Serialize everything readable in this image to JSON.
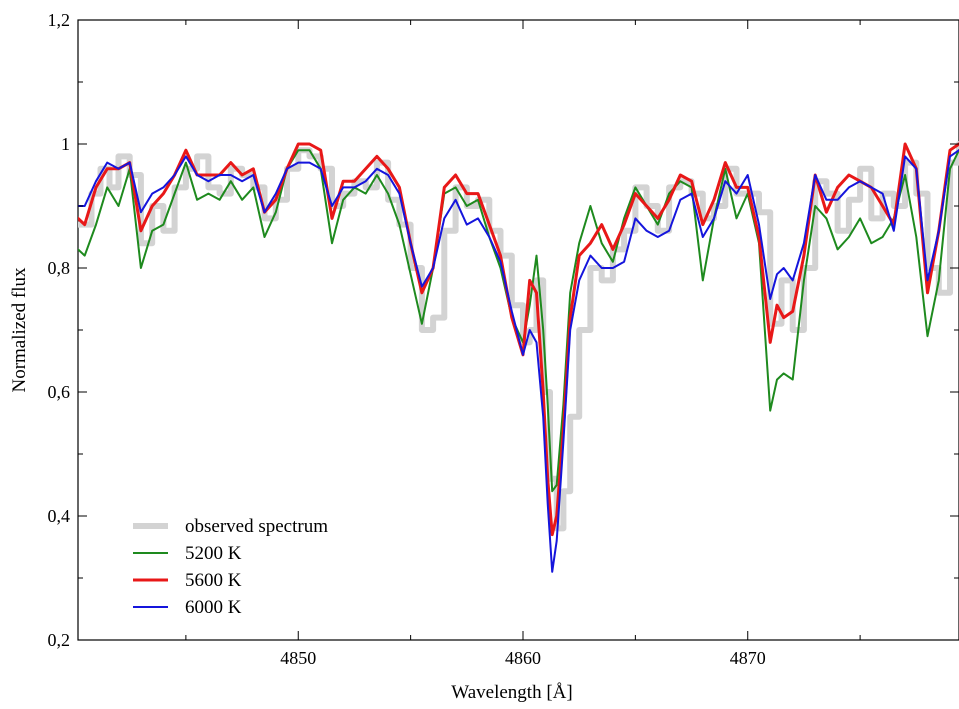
{
  "chart_data": {
    "type": "line",
    "title": "",
    "xlabel": "Wavelength [Å]",
    "ylabel": "Normalized flux",
    "xlim": [
      4840.2,
      4879.4
    ],
    "ylim": [
      0.2,
      1.2
    ],
    "x_ticks": [
      4850,
      4860,
      4870
    ],
    "x_tick_labels": [
      "4850",
      "4860",
      "4870"
    ],
    "y_ticks": [
      0.2,
      0.4,
      0.6,
      0.8,
      1.0,
      1.2
    ],
    "y_tick_labels": [
      "0,2",
      "0,4",
      "0,6",
      "0,8",
      "1",
      "1,2"
    ],
    "grid": false,
    "legend_position": "bottom-left",
    "series": [
      {
        "name": "observed spectrum",
        "color": "#d3d3d3",
        "x": [
          4840.2,
          4840.8,
          4841.2,
          4841.6,
          4842.0,
          4842.5,
          4843.0,
          4843.5,
          4844.0,
          4844.5,
          4845.0,
          4845.5,
          4846.0,
          4846.5,
          4847.0,
          4847.5,
          4848.0,
          4848.5,
          4849.0,
          4849.5,
          4850.0,
          4850.5,
          4851.0,
          4851.5,
          4852.0,
          4852.5,
          4853.0,
          4853.5,
          4854.0,
          4854.5,
          4855.0,
          4855.5,
          4856.0,
          4856.5,
          4857.0,
          4857.5,
          4858.0,
          4858.5,
          4859.0,
          4859.5,
          4860.0,
          4860.3,
          4860.6,
          4860.9,
          4861.2,
          4861.5,
          4861.8,
          4862.1,
          4862.5,
          4863.0,
          4863.5,
          4864.0,
          4864.5,
          4865.0,
          4865.5,
          4866.0,
          4866.5,
          4867.0,
          4867.5,
          4868.0,
          4868.5,
          4869.0,
          4869.5,
          4870.0,
          4870.5,
          4871.0,
          4871.5,
          4872.0,
          4872.5,
          4873.0,
          4873.5,
          4874.0,
          4874.5,
          4875.0,
          4875.5,
          4876.0,
          4876.5,
          4877.0,
          4877.5,
          4878.0,
          4878.5,
          4879.0,
          4879.4
        ],
        "y": [
          0.87,
          0.92,
          0.96,
          0.93,
          0.98,
          0.95,
          0.84,
          0.9,
          0.86,
          0.93,
          0.96,
          0.98,
          0.93,
          0.92,
          0.96,
          0.95,
          0.93,
          0.88,
          0.91,
          0.96,
          0.99,
          0.98,
          0.96,
          0.9,
          0.92,
          0.94,
          0.93,
          0.97,
          0.91,
          0.87,
          0.8,
          0.7,
          0.72,
          0.86,
          0.93,
          0.9,
          0.91,
          0.86,
          0.82,
          0.74,
          0.68,
          0.7,
          0.78,
          0.6,
          0.46,
          0.38,
          0.44,
          0.56,
          0.7,
          0.8,
          0.78,
          0.83,
          0.86,
          0.93,
          0.9,
          0.86,
          0.93,
          0.94,
          0.92,
          0.88,
          0.9,
          0.96,
          0.92,
          0.92,
          0.89,
          0.71,
          0.78,
          0.7,
          0.8,
          0.94,
          0.92,
          0.86,
          0.91,
          0.96,
          0.88,
          0.92,
          0.9,
          0.97,
          0.92,
          0.8,
          0.76,
          0.97,
          1.0
        ]
      },
      {
        "name": "5200 K",
        "color": "#1e8a1e",
        "x": [
          4840.2,
          4840.5,
          4841.0,
          4841.5,
          4842.0,
          4842.5,
          4843.0,
          4843.5,
          4844.0,
          4844.5,
          4845.0,
          4845.5,
          4846.0,
          4846.5,
          4847.0,
          4847.5,
          4848.0,
          4848.5,
          4849.0,
          4849.5,
          4850.0,
          4850.5,
          4851.0,
          4851.5,
          4852.0,
          4852.5,
          4853.0,
          4853.5,
          4854.0,
          4854.5,
          4855.0,
          4855.5,
          4856.0,
          4856.5,
          4857.0,
          4857.5,
          4858.0,
          4858.5,
          4859.0,
          4859.5,
          4860.0,
          4860.3,
          4860.6,
          4860.9,
          4861.1,
          4861.3,
          4861.5,
          4861.8,
          4862.1,
          4862.5,
          4863.0,
          4863.5,
          4864.0,
          4864.5,
          4865.0,
          4865.5,
          4866.0,
          4866.5,
          4867.0,
          4867.5,
          4868.0,
          4868.5,
          4869.0,
          4869.5,
          4870.0,
          4870.5,
          4871.0,
          4871.3,
          4871.6,
          4872.0,
          4872.5,
          4873.0,
          4873.5,
          4874.0,
          4874.5,
          4875.0,
          4875.5,
          4876.0,
          4876.5,
          4877.0,
          4877.5,
          4878.0,
          4878.5,
          4879.0,
          4879.4
        ],
        "y": [
          0.83,
          0.82,
          0.87,
          0.93,
          0.9,
          0.96,
          0.8,
          0.86,
          0.87,
          0.92,
          0.97,
          0.91,
          0.92,
          0.91,
          0.94,
          0.91,
          0.93,
          0.85,
          0.89,
          0.96,
          0.99,
          0.99,
          0.96,
          0.84,
          0.91,
          0.93,
          0.92,
          0.95,
          0.92,
          0.87,
          0.79,
          0.71,
          0.8,
          0.92,
          0.93,
          0.9,
          0.91,
          0.85,
          0.8,
          0.72,
          0.68,
          0.74,
          0.82,
          0.7,
          0.58,
          0.44,
          0.45,
          0.58,
          0.76,
          0.84,
          0.9,
          0.84,
          0.81,
          0.88,
          0.93,
          0.9,
          0.87,
          0.92,
          0.94,
          0.93,
          0.78,
          0.88,
          0.96,
          0.88,
          0.92,
          0.84,
          0.57,
          0.62,
          0.63,
          0.62,
          0.78,
          0.9,
          0.88,
          0.83,
          0.85,
          0.88,
          0.84,
          0.85,
          0.88,
          0.95,
          0.85,
          0.69,
          0.78,
          0.96,
          0.99
        ]
      },
      {
        "name": "5600 K",
        "color": "#e81818",
        "x": [
          4840.2,
          4840.5,
          4841.0,
          4841.5,
          4842.0,
          4842.5,
          4843.0,
          4843.5,
          4844.0,
          4844.5,
          4845.0,
          4845.5,
          4846.0,
          4846.5,
          4847.0,
          4847.5,
          4848.0,
          4848.5,
          4849.0,
          4849.5,
          4850.0,
          4850.5,
          4851.0,
          4851.5,
          4852.0,
          4852.5,
          4853.0,
          4853.5,
          4854.0,
          4854.5,
          4855.0,
          4855.5,
          4856.0,
          4856.5,
          4857.0,
          4857.5,
          4858.0,
          4858.5,
          4859.0,
          4859.5,
          4860.0,
          4860.3,
          4860.6,
          4860.9,
          4861.1,
          4861.3,
          4861.5,
          4861.8,
          4862.1,
          4862.5,
          4863.0,
          4863.5,
          4864.0,
          4864.5,
          4865.0,
          4865.5,
          4866.0,
          4866.5,
          4867.0,
          4867.5,
          4868.0,
          4868.5,
          4869.0,
          4869.5,
          4870.0,
          4870.5,
          4871.0,
          4871.3,
          4871.6,
          4872.0,
          4872.5,
          4873.0,
          4873.5,
          4874.0,
          4874.5,
          4875.0,
          4875.5,
          4876.0,
          4876.5,
          4877.0,
          4877.5,
          4878.0,
          4878.5,
          4879.0,
          4879.4
        ],
        "y": [
          0.88,
          0.87,
          0.93,
          0.96,
          0.96,
          0.97,
          0.86,
          0.9,
          0.92,
          0.95,
          0.99,
          0.95,
          0.95,
          0.95,
          0.97,
          0.95,
          0.96,
          0.89,
          0.91,
          0.96,
          1.0,
          1.0,
          0.99,
          0.88,
          0.94,
          0.94,
          0.96,
          0.98,
          0.96,
          0.93,
          0.84,
          0.76,
          0.8,
          0.93,
          0.95,
          0.92,
          0.92,
          0.87,
          0.82,
          0.72,
          0.66,
          0.78,
          0.76,
          0.6,
          0.46,
          0.37,
          0.4,
          0.54,
          0.72,
          0.82,
          0.84,
          0.87,
          0.83,
          0.87,
          0.92,
          0.9,
          0.88,
          0.91,
          0.95,
          0.94,
          0.87,
          0.91,
          0.97,
          0.93,
          0.93,
          0.85,
          0.68,
          0.74,
          0.72,
          0.73,
          0.82,
          0.95,
          0.89,
          0.93,
          0.95,
          0.94,
          0.93,
          0.9,
          0.87,
          1.0,
          0.96,
          0.76,
          0.86,
          0.99,
          1.0
        ]
      },
      {
        "name": "6000 K",
        "color": "#1515dc",
        "x": [
          4840.2,
          4840.5,
          4841.0,
          4841.5,
          4842.0,
          4842.5,
          4843.0,
          4843.5,
          4844.0,
          4844.5,
          4845.0,
          4845.5,
          4846.0,
          4846.5,
          4847.0,
          4847.5,
          4848.0,
          4848.5,
          4849.0,
          4849.5,
          4850.0,
          4850.5,
          4851.0,
          4851.5,
          4852.0,
          4852.5,
          4853.0,
          4853.5,
          4854.0,
          4854.5,
          4855.0,
          4855.5,
          4856.0,
          4856.5,
          4857.0,
          4857.5,
          4858.0,
          4858.5,
          4859.0,
          4859.5,
          4860.0,
          4860.3,
          4860.6,
          4860.9,
          4861.1,
          4861.3,
          4861.5,
          4861.8,
          4862.1,
          4862.5,
          4863.0,
          4863.5,
          4864.0,
          4864.5,
          4865.0,
          4865.5,
          4866.0,
          4866.5,
          4867.0,
          4867.5,
          4868.0,
          4868.5,
          4869.0,
          4869.5,
          4870.0,
          4870.5,
          4871.0,
          4871.3,
          4871.6,
          4872.0,
          4872.5,
          4873.0,
          4873.5,
          4874.0,
          4874.5,
          4875.0,
          4875.5,
          4876.0,
          4876.5,
          4877.0,
          4877.5,
          4878.0,
          4878.5,
          4879.0,
          4879.4
        ],
        "y": [
          0.9,
          0.9,
          0.94,
          0.97,
          0.96,
          0.97,
          0.89,
          0.92,
          0.93,
          0.95,
          0.98,
          0.95,
          0.94,
          0.95,
          0.95,
          0.94,
          0.95,
          0.89,
          0.92,
          0.96,
          0.97,
          0.97,
          0.96,
          0.9,
          0.93,
          0.93,
          0.94,
          0.96,
          0.95,
          0.92,
          0.84,
          0.77,
          0.8,
          0.88,
          0.91,
          0.87,
          0.88,
          0.85,
          0.81,
          0.73,
          0.66,
          0.7,
          0.68,
          0.56,
          0.42,
          0.31,
          0.36,
          0.52,
          0.7,
          0.78,
          0.82,
          0.8,
          0.8,
          0.81,
          0.88,
          0.86,
          0.85,
          0.86,
          0.91,
          0.92,
          0.85,
          0.88,
          0.94,
          0.92,
          0.95,
          0.87,
          0.75,
          0.79,
          0.8,
          0.78,
          0.84,
          0.95,
          0.91,
          0.91,
          0.93,
          0.94,
          0.93,
          0.92,
          0.86,
          0.98,
          0.96,
          0.78,
          0.86,
          0.98,
          0.99
        ]
      }
    ]
  }
}
